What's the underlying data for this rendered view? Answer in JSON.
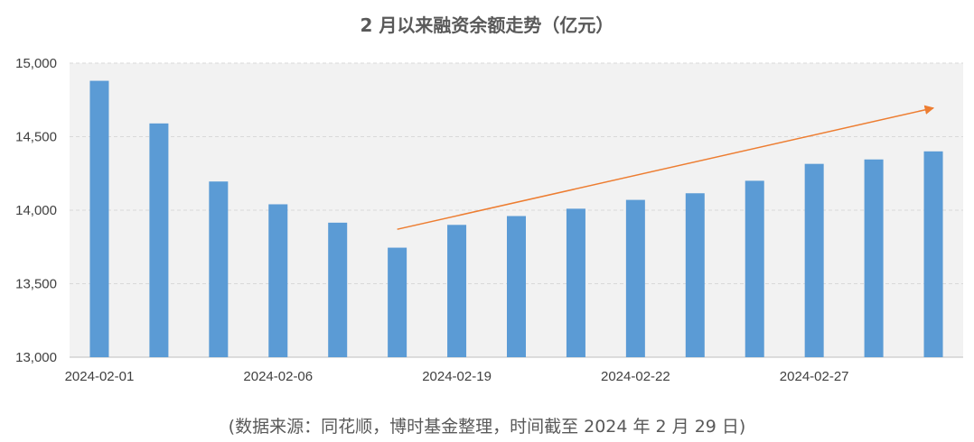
{
  "title": "2 月以来融资余额走势（亿元）",
  "source": "(数据来源：同花顺，博时基金整理，时间截至 2024 年 2 月 29 日)",
  "colors": {
    "bar": "#5b9bd5",
    "trend": "#ed7d31",
    "plot_bg": "#f2f2f2",
    "grid": "#d9d9d9"
  },
  "chart_data": {
    "type": "bar",
    "ylim": [
      13000,
      15000
    ],
    "yticks": [
      13000,
      13500,
      14000,
      14500,
      15000
    ],
    "ytick_labels": [
      "13,000",
      "13,500",
      "14,000",
      "14,500",
      "15,000"
    ],
    "xtick_labels": [
      {
        "index": 0,
        "label": "2024-02-01"
      },
      {
        "index": 3,
        "label": "2024-02-06"
      },
      {
        "index": 6,
        "label": "2024-02-19"
      },
      {
        "index": 9,
        "label": "2024-02-22"
      },
      {
        "index": 12,
        "label": "2024-02-27"
      }
    ],
    "values": [
      14880,
      14590,
      14195,
      14040,
      13915,
      13745,
      13900,
      13960,
      14010,
      14070,
      14115,
      14200,
      14315,
      14345,
      14400
    ],
    "grid": true,
    "trend_arrow": {
      "from_index": 5,
      "from_value": 13870,
      "to_index": 14,
      "to_value": 14695
    }
  }
}
